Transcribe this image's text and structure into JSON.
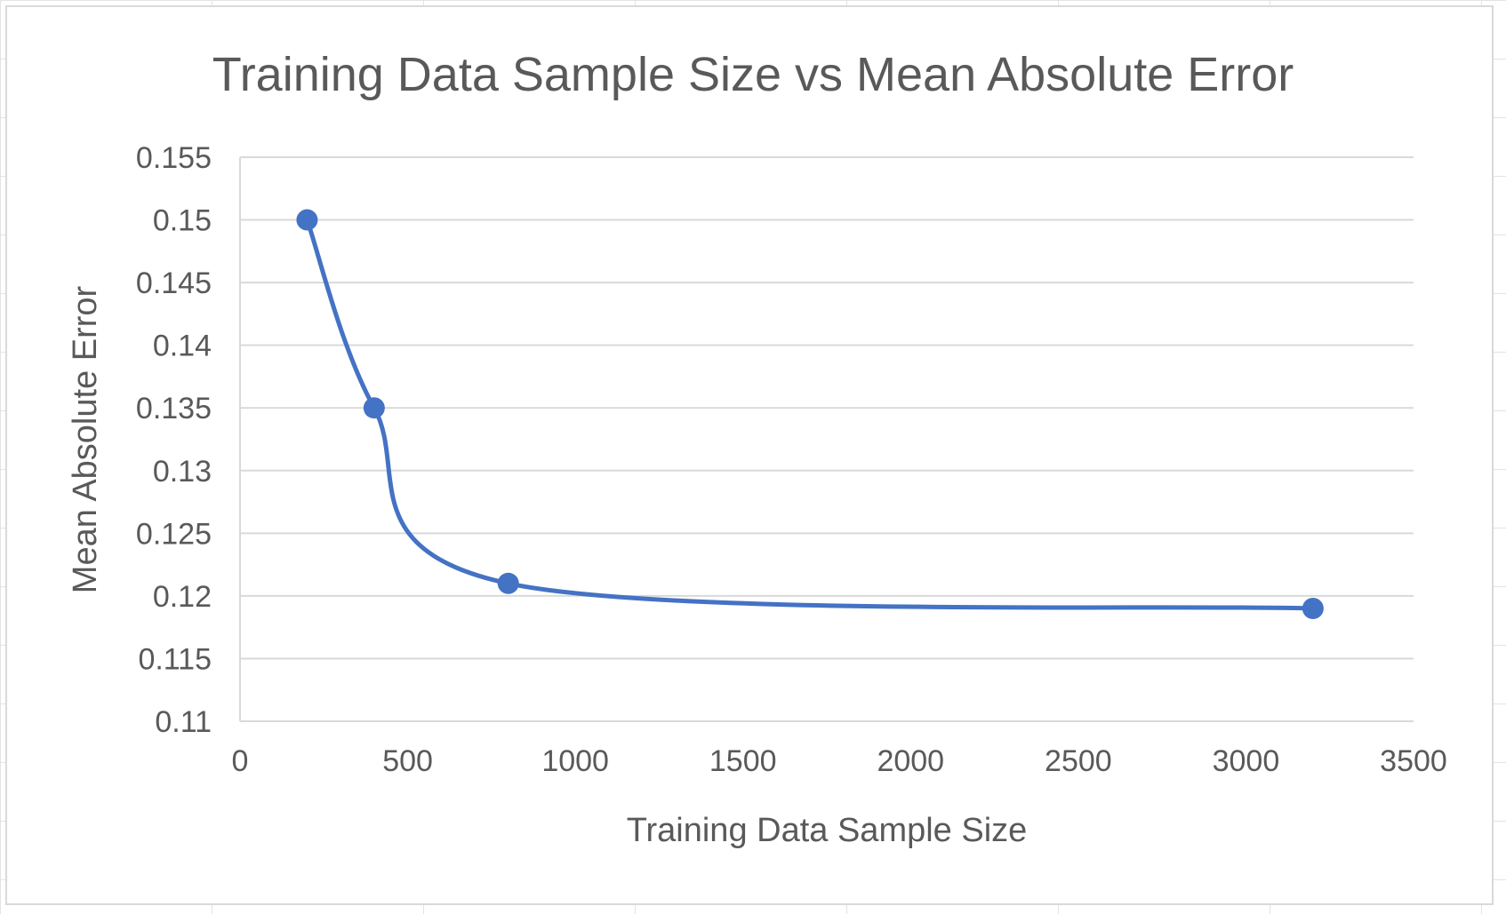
{
  "chart_data": {
    "type": "scatter",
    "title": "Training Data Sample Size vs Mean Absolute Error",
    "xlabel": "Training Data Sample Size",
    "ylabel": "Mean Absolute Error",
    "xlim": [
      0,
      3500
    ],
    "ylim": [
      0.11,
      0.155
    ],
    "x_ticks": [
      "0",
      "500",
      "1000",
      "1500",
      "2000",
      "2500",
      "3000",
      "3500"
    ],
    "y_ticks": [
      "0.11",
      "0.115",
      "0.12",
      "0.125",
      "0.13",
      "0.135",
      "0.14",
      "0.145",
      "0.15",
      "0.155"
    ],
    "grid": "horizontal",
    "smooth_line": true,
    "legend": "none",
    "series": [
      {
        "color": "#4472c4",
        "x": [
          200,
          400,
          800,
          3200
        ],
        "y": [
          0.15,
          0.135,
          0.121,
          0.119
        ]
      }
    ]
  }
}
